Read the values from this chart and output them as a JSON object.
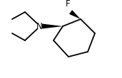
{
  "background": "#ffffff",
  "line_color": "#000000",
  "line_width": 1.3,
  "fig_width": 1.71,
  "fig_height": 1.1,
  "dpi": 100,
  "F_label": "F",
  "N_label": "N",
  "font_size": 8.5
}
